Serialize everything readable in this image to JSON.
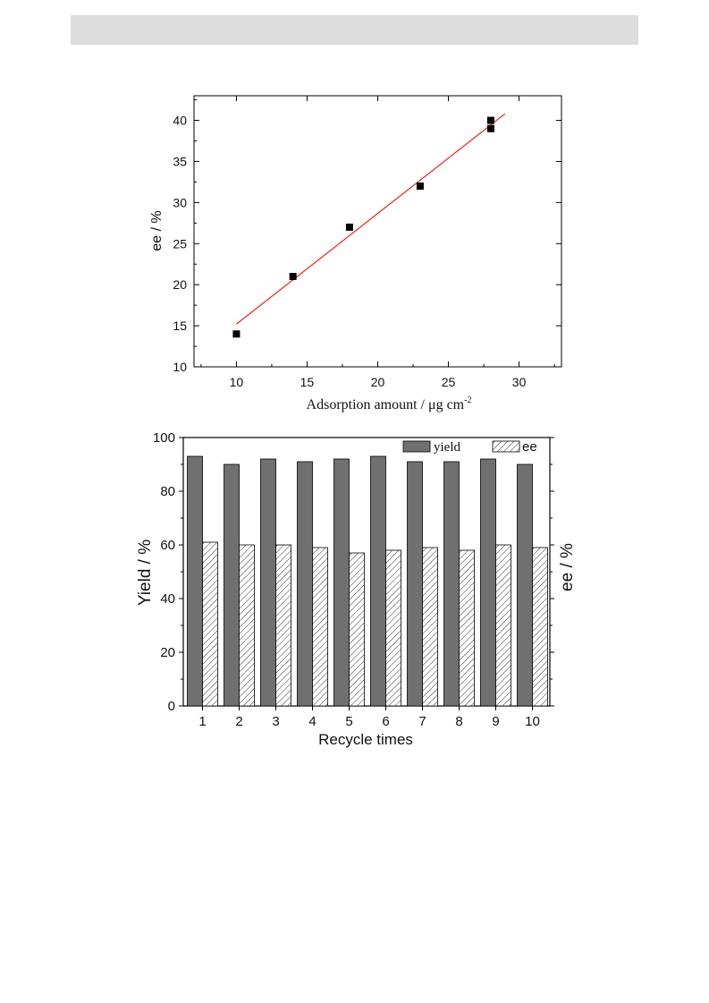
{
  "chart_data": [
    {
      "type": "scatter",
      "title": "",
      "xlabel": "Adsorption amount / μg cm",
      "xlabel_superscript": "-2",
      "ylabel": "ee / %",
      "xlim": [
        7,
        33
      ],
      "ylim": [
        10,
        43
      ],
      "x_ticks": [
        10,
        15,
        20,
        25,
        30
      ],
      "y_ticks": [
        10,
        15,
        20,
        25,
        30,
        35,
        40
      ],
      "x_tick_labels": [
        "10",
        "15",
        "20",
        "25",
        "30"
      ],
      "y_tick_labels": [
        "10",
        "15",
        "20",
        "25",
        "30",
        "35",
        "40"
      ],
      "points": [
        {
          "x": 10,
          "y": 14
        },
        {
          "x": 14,
          "y": 21
        },
        {
          "x": 18,
          "y": 27
        },
        {
          "x": 23,
          "y": 32
        },
        {
          "x": 28,
          "y": 39
        },
        {
          "x": 28,
          "y": 40
        }
      ],
      "fit_line": {
        "x": [
          10,
          29
        ],
        "y": [
          15.2,
          40.8
        ],
        "color": "#e8231c"
      },
      "marker_color": "#000000",
      "grid": false
    },
    {
      "type": "bar",
      "title": "",
      "xlabel": "Recycle times",
      "ylabel": "Yield / %",
      "ylabel_right": "ee / %",
      "ylim": [
        0,
        100
      ],
      "y_ticks": [
        0,
        20,
        40,
        60,
        80,
        100
      ],
      "y_tick_labels": [
        "0",
        "20",
        "40",
        "60",
        "80",
        "100"
      ],
      "categories": [
        "1",
        "2",
        "3",
        "4",
        "5",
        "6",
        "7",
        "8",
        "9",
        "10"
      ],
      "series": [
        {
          "name": "yield",
          "values": [
            93,
            90,
            92,
            91,
            92,
            93,
            91,
            91,
            92,
            90
          ],
          "color": "#707070"
        },
        {
          "name": "ee",
          "values": [
            61,
            60,
            60,
            59,
            57,
            58,
            59,
            58,
            60,
            59
          ],
          "color": "#ffffff",
          "pattern": "hatch"
        }
      ],
      "legend_position": "top-right",
      "grid": false
    }
  ]
}
